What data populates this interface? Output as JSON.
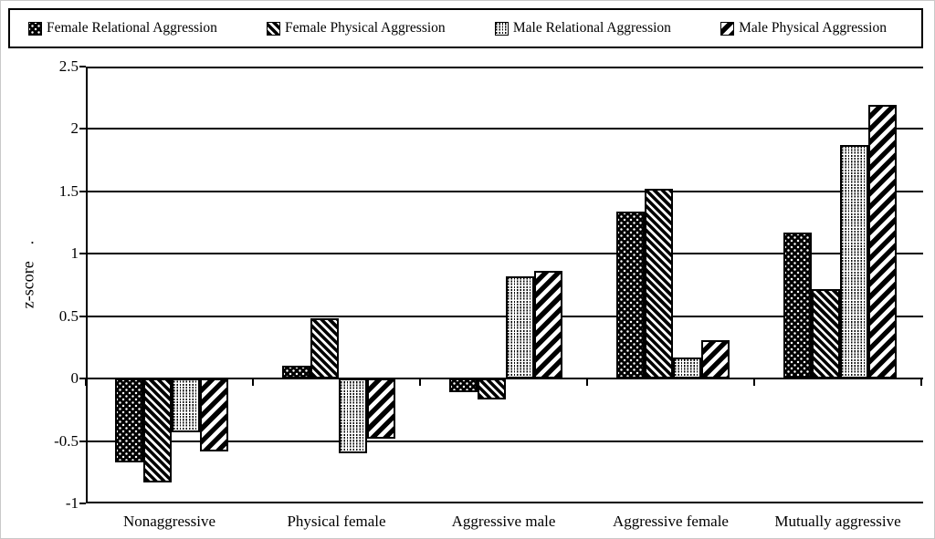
{
  "accent_color": "#000000",
  "background_color": "#ffffff",
  "chart_data": {
    "type": "bar",
    "title": "",
    "xlabel": "",
    "ylabel": "z-score",
    "ylabel_suffix": ".",
    "ylim": [
      -1,
      2.5
    ],
    "y_ticks": [
      "2.5",
      "2",
      "1.5",
      "1",
      "0.5",
      "0",
      "-0.5",
      "-1"
    ],
    "grid": "horizontal",
    "legend_position": "top",
    "categories": [
      "Nonaggressive",
      "Physical female",
      "Aggressive male",
      "Aggressive female",
      "Mutually aggressive"
    ],
    "series": [
      {
        "name": "Female Relational Aggression",
        "pattern": "white-dots-on-black",
        "values": [
          -0.67,
          0.1,
          -0.11,
          1.34,
          1.17
        ]
      },
      {
        "name": "Female Physical Aggression",
        "pattern": "white-diagonal-stripes-on-black",
        "values": [
          -0.83,
          0.48,
          -0.17,
          1.52,
          0.72
        ]
      },
      {
        "name": "Male Relational Aggression",
        "pattern": "black-dashed-columns-on-white",
        "values": [
          -0.43,
          -0.6,
          0.82,
          0.17,
          1.87
        ]
      },
      {
        "name": "Male Physical Aggression",
        "pattern": "black-diagonal-stripes-on-white",
        "values": [
          -0.58,
          -0.48,
          0.86,
          0.31,
          2.19
        ]
      }
    ]
  }
}
